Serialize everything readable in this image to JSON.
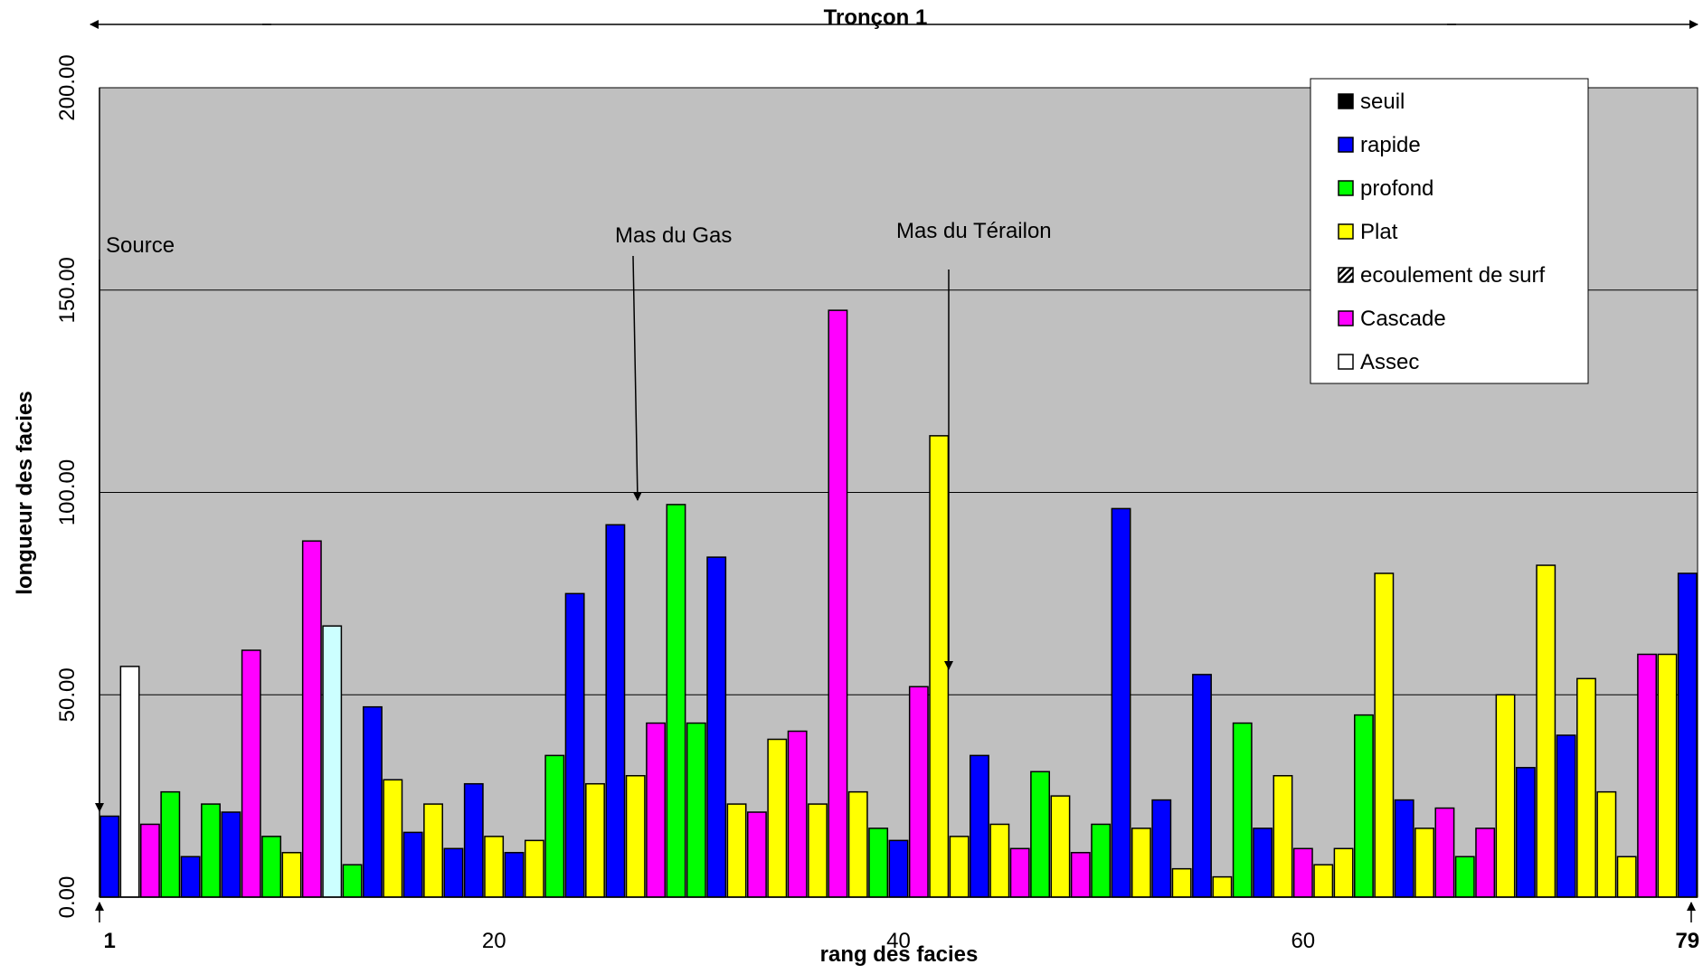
{
  "chart_data": {
    "type": "bar",
    "title": "Tronçon 1",
    "xlabel": "rang des facies",
    "ylabel": "longueur des facies",
    "ylim": [
      0,
      200
    ],
    "yticks": [
      "0.00",
      "50.00",
      "100.00",
      "150.00",
      "200.00"
    ],
    "xticks": [
      {
        "rank": 1,
        "label": "1",
        "bold": true
      },
      {
        "rank": 20,
        "label": "20",
        "bold": false
      },
      {
        "rank": 40,
        "label": "40",
        "bold": false
      },
      {
        "rank": 60,
        "label": "60",
        "bold": false
      },
      {
        "rank": 79,
        "label": "79",
        "bold": true
      }
    ],
    "x_range": [
      1,
      79
    ],
    "grid": true,
    "legend_position": "top-right",
    "legend": [
      {
        "name": "seuil",
        "color": "#000000",
        "pattern": "solid"
      },
      {
        "name": "rapide",
        "color": "#0000ff",
        "pattern": "solid"
      },
      {
        "name": "profond",
        "color": "#00ff00",
        "pattern": "solid"
      },
      {
        "name": "Plat",
        "color": "#ffff00",
        "pattern": "solid"
      },
      {
        "name": "ecoulement de surf",
        "color": "#000000",
        "pattern": "hatch"
      },
      {
        "name": "Cascade",
        "color": "#ff00ff",
        "pattern": "solid"
      },
      {
        "name": "Assec",
        "color": "#ffffff",
        "pattern": "solid"
      }
    ],
    "colors": {
      "rapide": "#0000ff",
      "profond": "#00ff00",
      "Plat": "#ffff00",
      "Cascade": "#ff00ff",
      "Assec": "#ffffff",
      "light": "#ccffff"
    },
    "bars": [
      {
        "rank": 1,
        "type": "rapide",
        "value": 20
      },
      {
        "rank": 2,
        "type": "Assec",
        "value": 57
      },
      {
        "rank": 3,
        "type": "Cascade",
        "value": 18
      },
      {
        "rank": 4,
        "type": "profond",
        "value": 26
      },
      {
        "rank": 5,
        "type": "rapide",
        "value": 10
      },
      {
        "rank": 6,
        "type": "profond",
        "value": 23
      },
      {
        "rank": 7,
        "type": "rapide",
        "value": 21
      },
      {
        "rank": 8,
        "type": "Cascade",
        "value": 61
      },
      {
        "rank": 9,
        "type": "profond",
        "value": 15
      },
      {
        "rank": 10,
        "type": "Plat",
        "value": 11
      },
      {
        "rank": 11,
        "type": "Cascade",
        "value": 88
      },
      {
        "rank": 12,
        "type": "light",
        "value": 67
      },
      {
        "rank": 13,
        "type": "profond",
        "value": 8
      },
      {
        "rank": 14,
        "type": "rapide",
        "value": 47
      },
      {
        "rank": 15,
        "type": "Plat",
        "value": 29
      },
      {
        "rank": 16,
        "type": "rapide",
        "value": 16
      },
      {
        "rank": 17,
        "type": "Plat",
        "value": 23
      },
      {
        "rank": 18,
        "type": "rapide",
        "value": 12
      },
      {
        "rank": 19,
        "type": "rapide",
        "value": 28
      },
      {
        "rank": 20,
        "type": "Plat",
        "value": 15
      },
      {
        "rank": 21,
        "type": "rapide",
        "value": 11
      },
      {
        "rank": 22,
        "type": "Plat",
        "value": 14
      },
      {
        "rank": 23,
        "type": "profond",
        "value": 35
      },
      {
        "rank": 24,
        "type": "rapide",
        "value": 75
      },
      {
        "rank": 25,
        "type": "Plat",
        "value": 28
      },
      {
        "rank": 26,
        "type": "rapide",
        "value": 92
      },
      {
        "rank": 27,
        "type": "Plat",
        "value": 30
      },
      {
        "rank": 28,
        "type": "Cascade",
        "value": 43
      },
      {
        "rank": 29,
        "type": "profond",
        "value": 97
      },
      {
        "rank": 30,
        "type": "profond",
        "value": 43
      },
      {
        "rank": 31,
        "type": "rapide",
        "value": 84
      },
      {
        "rank": 32,
        "type": "Plat",
        "value": 23
      },
      {
        "rank": 33,
        "type": "Cascade",
        "value": 21
      },
      {
        "rank": 34,
        "type": "Plat",
        "value": 39
      },
      {
        "rank": 35,
        "type": "Cascade",
        "value": 41
      },
      {
        "rank": 36,
        "type": "Plat",
        "value": 23
      },
      {
        "rank": 37,
        "type": "Cascade",
        "value": 145
      },
      {
        "rank": 38,
        "type": "Plat",
        "value": 26
      },
      {
        "rank": 39,
        "type": "profond",
        "value": 17
      },
      {
        "rank": 40,
        "type": "rapide",
        "value": 14
      },
      {
        "rank": 41,
        "type": "Cascade",
        "value": 52
      },
      {
        "rank": 42,
        "type": "Plat",
        "value": 114
      },
      {
        "rank": 43,
        "type": "Plat",
        "value": 15
      },
      {
        "rank": 44,
        "type": "rapide",
        "value": 35
      },
      {
        "rank": 45,
        "type": "Plat",
        "value": 18
      },
      {
        "rank": 46,
        "type": "Cascade",
        "value": 12
      },
      {
        "rank": 47,
        "type": "profond",
        "value": 31
      },
      {
        "rank": 48,
        "type": "Plat",
        "value": 25
      },
      {
        "rank": 49,
        "type": "Cascade",
        "value": 11
      },
      {
        "rank": 50,
        "type": "profond",
        "value": 18
      },
      {
        "rank": 51,
        "type": "rapide",
        "value": 96
      },
      {
        "rank": 52,
        "type": "Plat",
        "value": 17
      },
      {
        "rank": 53,
        "type": "rapide",
        "value": 24
      },
      {
        "rank": 54,
        "type": "Plat",
        "value": 7
      },
      {
        "rank": 55,
        "type": "rapide",
        "value": 55
      },
      {
        "rank": 56,
        "type": "Plat",
        "value": 5
      },
      {
        "rank": 57,
        "type": "profond",
        "value": 43
      },
      {
        "rank": 58,
        "type": "rapide",
        "value": 17
      },
      {
        "rank": 59,
        "type": "Plat",
        "value": 30
      },
      {
        "rank": 60,
        "type": "Cascade",
        "value": 12
      },
      {
        "rank": 61,
        "type": "Plat",
        "value": 8
      },
      {
        "rank": 62,
        "type": "Plat",
        "value": 12
      },
      {
        "rank": 63,
        "type": "profond",
        "value": 45
      },
      {
        "rank": 64,
        "type": "Plat",
        "value": 80
      },
      {
        "rank": 65,
        "type": "rapide",
        "value": 24
      },
      {
        "rank": 66,
        "type": "Plat",
        "value": 17
      },
      {
        "rank": 67,
        "type": "Cascade",
        "value": 22
      },
      {
        "rank": 68,
        "type": "profond",
        "value": 10
      },
      {
        "rank": 69,
        "type": "Cascade",
        "value": 17
      },
      {
        "rank": 70,
        "type": "Plat",
        "value": 50
      },
      {
        "rank": 71,
        "type": "rapide",
        "value": 32
      },
      {
        "rank": 72,
        "type": "Plat",
        "value": 82
      },
      {
        "rank": 73,
        "type": "rapide",
        "value": 40
      },
      {
        "rank": 74,
        "type": "Plat",
        "value": 54
      },
      {
        "rank": 75,
        "type": "Plat",
        "value": 26
      },
      {
        "rank": 76,
        "type": "Plat",
        "value": 10
      },
      {
        "rank": 77,
        "type": "Cascade",
        "value": 60
      },
      {
        "rank": 78,
        "type": "Plat",
        "value": 60
      },
      {
        "rank": 79,
        "type": "rapide",
        "value": 80
      }
    ],
    "annotations": [
      {
        "text": "Source",
        "rank": 1,
        "value": 20
      },
      {
        "text": "Mas du Gas",
        "rank": 26,
        "value": 98
      },
      {
        "text": "Mas du Térailon",
        "rank": 42,
        "value": 55
      }
    ]
  }
}
